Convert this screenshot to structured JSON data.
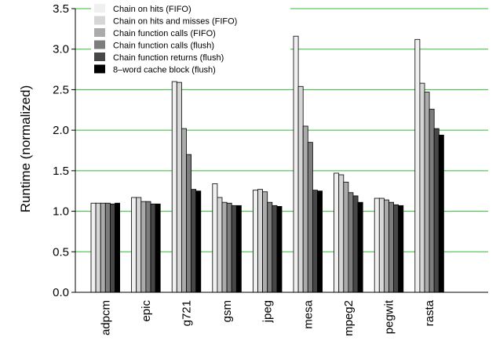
{
  "chart_data": {
    "type": "bar",
    "title": "",
    "xlabel": "",
    "ylabel": "Runtime (normalized)",
    "ylim": [
      0,
      3.5
    ],
    "yticks": [
      "0.0",
      "0.5",
      "1.0",
      "1.5",
      "2.0",
      "2.5",
      "3.0",
      "3.5"
    ],
    "grid": true,
    "legend_position": "top-left",
    "categories": [
      "adpcm",
      "epic",
      "g721",
      "gsm",
      "jpeg",
      "mesa",
      "mpeg2",
      "pegwit",
      "rasta"
    ],
    "series": [
      {
        "name": "Chain on hits (FIFO)",
        "color": "#f0f0f0",
        "values": [
          1.1,
          1.17,
          2.6,
          1.34,
          1.26,
          3.16,
          1.47,
          1.16,
          3.12
        ]
      },
      {
        "name": "Chain on hits and misses (FIFO)",
        "color": "#d6d6d6",
        "values": [
          1.1,
          1.17,
          2.59,
          1.17,
          1.27,
          2.54,
          1.45,
          1.16,
          2.58
        ]
      },
      {
        "name": "Chain function calls (FIFO)",
        "color": "#ababab",
        "values": [
          1.1,
          1.12,
          2.02,
          1.11,
          1.24,
          2.05,
          1.36,
          1.14,
          2.47
        ]
      },
      {
        "name": "Chain function calls (flush)",
        "color": "#7d7d7d",
        "values": [
          1.1,
          1.12,
          1.7,
          1.1,
          1.11,
          1.85,
          1.23,
          1.11,
          2.26
        ]
      },
      {
        "name": "Chain function returns (flush)",
        "color": "#474747",
        "values": [
          1.09,
          1.09,
          1.27,
          1.07,
          1.07,
          1.26,
          1.19,
          1.08,
          2.02
        ]
      },
      {
        "name": "8–word cache block (flush)",
        "color": "#000000",
        "values": [
          1.1,
          1.09,
          1.25,
          1.07,
          1.06,
          1.25,
          1.11,
          1.07,
          1.94
        ]
      }
    ]
  }
}
